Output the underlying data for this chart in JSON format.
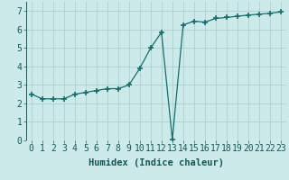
{
  "xlabel": "Humidex (Indice chaleur)",
  "ylabel": "",
  "background_color": "#cceaea",
  "line_color": "#1a6b6b",
  "marker_color": "#1a6b6b",
  "x": [
    0,
    1,
    2,
    3,
    4,
    5,
    6,
    7,
    8,
    9,
    10,
    11,
    12,
    13,
    14,
    15,
    16,
    17,
    18,
    19,
    20,
    21,
    22,
    23
  ],
  "y": [
    2.5,
    2.25,
    2.25,
    2.25,
    2.5,
    2.6,
    2.7,
    2.8,
    2.8,
    3.0,
    3.9,
    5.0,
    5.85,
    0.05,
    6.25,
    6.45,
    6.4,
    6.6,
    6.65,
    6.72,
    6.78,
    6.83,
    6.88,
    6.95
  ],
  "xlim": [
    -0.5,
    23.5
  ],
  "ylim": [
    0,
    7.5
  ],
  "yticks": [
    0,
    1,
    2,
    3,
    4,
    5,
    6,
    7
  ],
  "xtick_labels": [
    "0",
    "1",
    "2",
    "3",
    "4",
    "5",
    "6",
    "7",
    "8",
    "9",
    "10",
    "11",
    "12",
    "13",
    "14",
    "15",
    "16",
    "17",
    "18",
    "19",
    "20",
    "21",
    "22",
    "23"
  ],
  "grid_color": "#b0d4d4",
  "label_fontsize": 7.5,
  "tick_fontsize": 7
}
